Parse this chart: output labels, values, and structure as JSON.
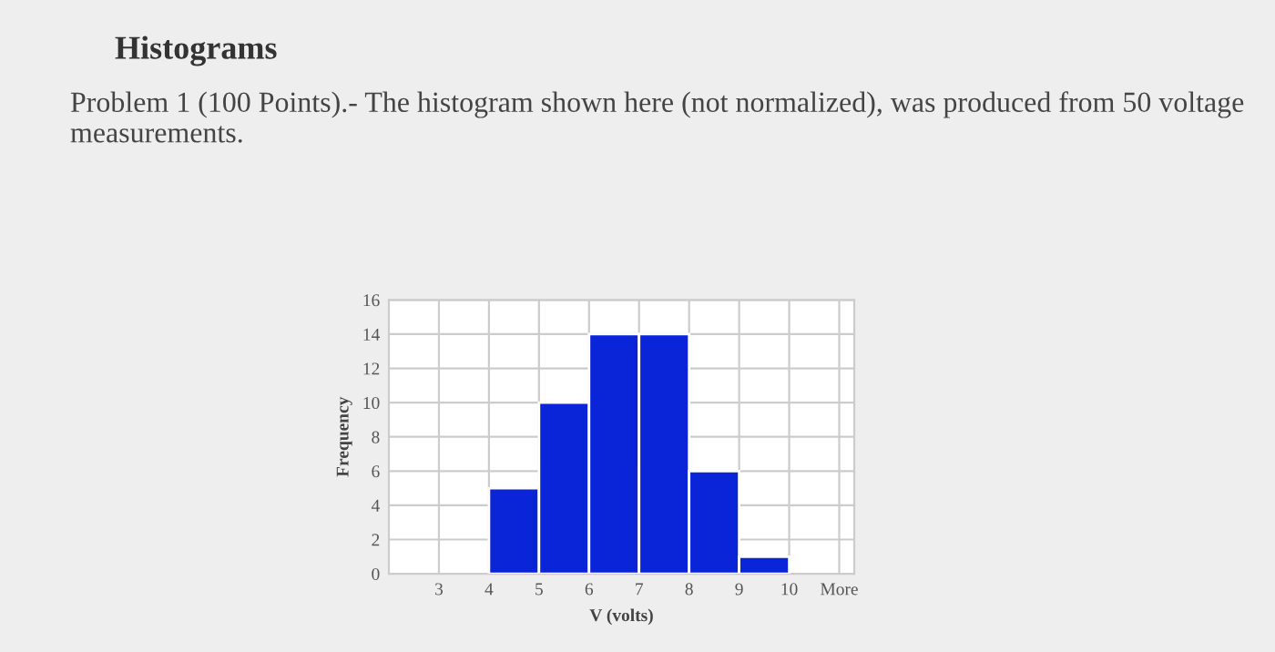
{
  "chart_data": {
    "type": "histogram",
    "title": "Histograms",
    "subtitle": "Problem 1 (100 Points).- The histogram shown here (not normalized), was produced from 50 voltage measurements.",
    "xlabel": "V (volts)",
    "ylabel": "Frequency",
    "bins": [
      4,
      5,
      6,
      7,
      8,
      9,
      10
    ],
    "values": [
      5,
      10,
      14,
      14,
      6,
      1
    ],
    "color": "#0a24d8",
    "xlim": [
      2,
      11.3
    ],
    "xticks": [
      3,
      4,
      5,
      6,
      7,
      8,
      9,
      10,
      {
        "value": 11,
        "label": "More"
      }
    ],
    "ylim": [
      0,
      16
    ],
    "yticks": [
      0,
      2,
      4,
      6,
      8,
      10,
      12,
      14,
      16
    ],
    "grid": true,
    "legend": false
  }
}
